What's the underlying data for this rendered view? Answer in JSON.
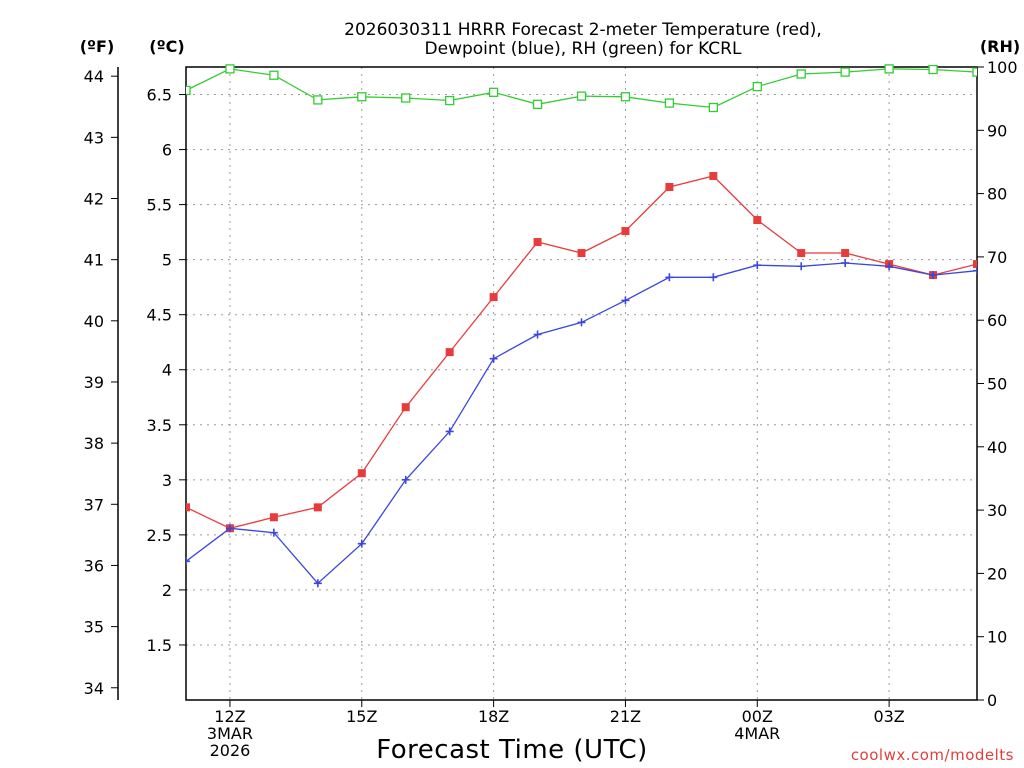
{
  "chart_data": {
    "type": "line",
    "title": [
      "2026030311 HRRR Forecast 2-meter Temperature (red),",
      "Dewpoint (blue), RH (green) for KCRL"
    ],
    "xlabel": "Forecast Time (UTC)",
    "credit": "coolwx.com/modelts",
    "units": {
      "left_outer": "(ºF)",
      "left_inner": "(ºC)",
      "right": "(RH)"
    },
    "x_hours": [
      11,
      12,
      13,
      14,
      15,
      16,
      17,
      18,
      19,
      20,
      21,
      22,
      23,
      24,
      25,
      26,
      27,
      28,
      29
    ],
    "x_range": [
      11,
      29
    ],
    "x_ticks": [
      {
        "hour": 12,
        "lines": [
          "12Z",
          "3MAR",
          "2026"
        ]
      },
      {
        "hour": 15,
        "lines": [
          "15Z"
        ]
      },
      {
        "hour": 18,
        "lines": [
          "18Z"
        ]
      },
      {
        "hour": 21,
        "lines": [
          "21Z"
        ]
      },
      {
        "hour": 24,
        "lines": [
          "00Z",
          "4MAR"
        ]
      },
      {
        "hour": 27,
        "lines": [
          "03Z"
        ]
      }
    ],
    "celsius_axis": {
      "range": [
        1.0,
        6.75
      ],
      "ticks": [
        "1.5",
        "2",
        "2.5",
        "3",
        "3.5",
        "4",
        "4.5",
        "5",
        "5.5",
        "6",
        "6.5"
      ]
    },
    "fahrenheit_axis": {
      "ticks": [
        "34",
        "35",
        "36",
        "37",
        "38",
        "39",
        "40",
        "41",
        "42",
        "43",
        "44"
      ]
    },
    "rh_axis": {
      "range": [
        0,
        100
      ],
      "ticks": [
        "0",
        "10",
        "20",
        "30",
        "40",
        "50",
        "60",
        "70",
        "80",
        "90",
        "100"
      ]
    },
    "series": [
      {
        "name": "Temperature",
        "axis": "celsius",
        "color": "#e83c3c",
        "marker": "filled-square",
        "values": [
          2.75,
          2.56,
          2.66,
          2.75,
          3.06,
          3.66,
          4.16,
          4.66,
          5.16,
          5.06,
          5.26,
          5.66,
          5.76,
          5.36,
          5.06,
          5.06,
          4.96,
          4.86,
          4.96
        ]
      },
      {
        "name": "Dewpoint",
        "axis": "celsius",
        "color": "#3a46e0",
        "marker": "plus",
        "values": [
          2.26,
          2.56,
          2.52,
          2.06,
          2.42,
          3.0,
          3.44,
          4.1,
          4.32,
          4.43,
          4.63,
          4.84,
          4.84,
          4.95,
          4.94,
          4.97,
          4.94,
          4.86,
          4.9
        ]
      },
      {
        "name": "RH",
        "axis": "rh",
        "color": "#33cc33",
        "marker": "open-square",
        "values": [
          96.3,
          99.7,
          98.7,
          94.8,
          95.3,
          95.1,
          94.7,
          96.0,
          94.1,
          95.4,
          95.3,
          94.3,
          93.6,
          96.9,
          98.9,
          99.2,
          99.7,
          99.6,
          99.2
        ]
      }
    ],
    "grid": true
  }
}
